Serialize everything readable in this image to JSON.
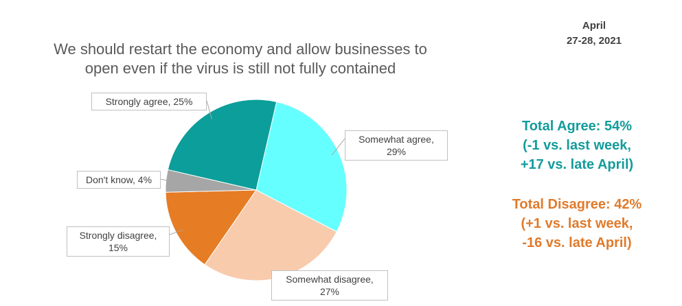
{
  "chart_data": {
    "type": "pie",
    "title": [
      "We should restart the economy and allow businesses to",
      "open even if the virus is still not fully contained"
    ],
    "values": [
      29,
      27,
      15,
      4,
      25
    ],
    "value_labels": [
      "Somewhat agree, 29%",
      "Somewhat disagree, 27%",
      "Strongly disagree, 15%",
      "Don't know, 4%",
      "Strongly agree, 25%"
    ],
    "colors": [
      "#66ffff",
      "#f8cbad",
      "#e67c24",
      "#a6a6a6",
      "#0c9e9a"
    ],
    "date": [
      "April",
      "27-28, 2021"
    ],
    "agree_note": [
      "Total Agree: 54%",
      "(-1 vs. last week,",
      "+17 vs. late April)"
    ],
    "disagree_note": [
      "Total Disagree: 42%",
      "(+1 vs. last week,",
      "-16 vs. late April)"
    ]
  }
}
